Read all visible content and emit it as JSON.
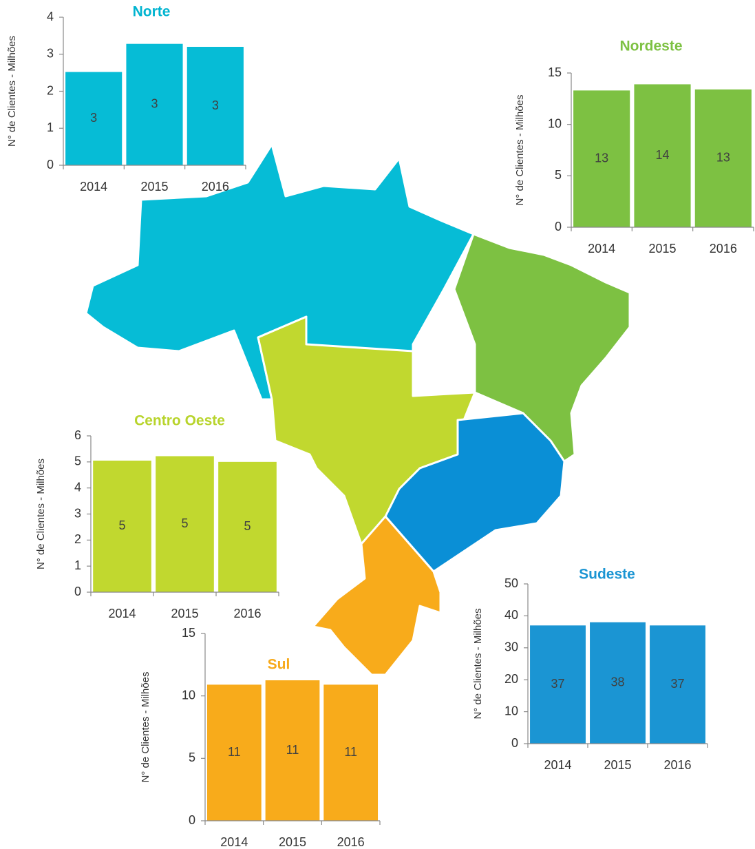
{
  "chart_data": [
    {
      "type": "bar",
      "title": "Norte",
      "title_color": "#00b4d0",
      "ylabel": "N° de Clientes - Milhões",
      "categories": [
        "2014",
        "2015",
        "2016"
      ],
      "values": [
        2.52,
        3.28,
        3.2
      ],
      "value_labels": [
        "3",
        "3",
        "3"
      ],
      "color": "#06bcd6",
      "ylim": [
        0,
        4
      ],
      "yticks": [
        0,
        1,
        2,
        3,
        4
      ]
    },
    {
      "type": "bar",
      "title": "Nordeste",
      "title_color": "#7dc142",
      "ylabel": "N° de Clientes - Milhões",
      "categories": [
        "2014",
        "2015",
        "2016"
      ],
      "values": [
        13.3,
        13.9,
        13.4
      ],
      "value_labels": [
        "13",
        "14",
        "13"
      ],
      "color": "#7dc142",
      "ylim": [
        0,
        15
      ],
      "yticks": [
        0,
        5,
        10,
        15
      ]
    },
    {
      "type": "bar",
      "title": "Centro Oeste",
      "title_color": "#b8d42c",
      "ylabel": "N° de Clientes - Milhões",
      "categories": [
        "2014",
        "2015",
        "2016"
      ],
      "values": [
        5.05,
        5.22,
        5.0
      ],
      "value_labels": [
        "5",
        "5",
        "5"
      ],
      "color": "#c1d82f",
      "ylim": [
        0,
        6
      ],
      "yticks": [
        0,
        1,
        2,
        3,
        4,
        5,
        6
      ]
    },
    {
      "type": "bar",
      "title": "Sudeste",
      "title_color": "#1b95d3",
      "ylabel": "N° de Clientes - Milhões",
      "categories": [
        "2014",
        "2015",
        "2016"
      ],
      "values": [
        37,
        38,
        37
      ],
      "color": "#1b95d3",
      "ylim": [
        0,
        50
      ],
      "yticks": [
        0,
        10,
        20,
        30,
        40,
        50
      ]
    },
    {
      "type": "bar",
      "title": "Sul",
      "title_color": "#f7aa1b",
      "ylabel": "N° de Clientes - Milhões",
      "categories": [
        "2014",
        "2015",
        "2016"
      ],
      "values": [
        10.9,
        11.25,
        10.9
      ],
      "value_labels": [
        "11",
        "11",
        "11"
      ],
      "color": "#f8ab1b",
      "ylim": [
        0,
        15
      ],
      "yticks": [
        0,
        5,
        10,
        15
      ]
    }
  ]
}
